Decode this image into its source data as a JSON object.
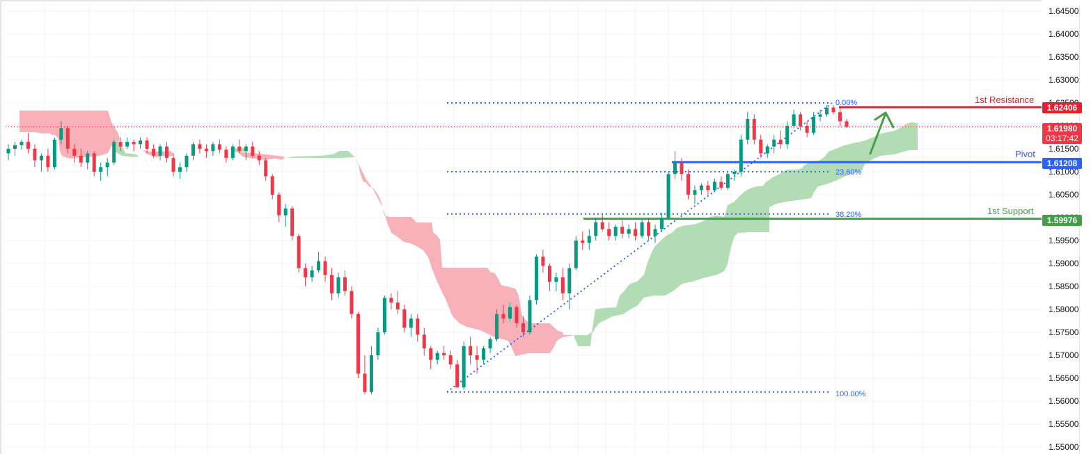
{
  "chart_data": {
    "type": "candlestick",
    "title": "",
    "xlabel": "",
    "ylabel": "",
    "ylim": [
      1.55,
      1.645
    ],
    "grid": true,
    "y_ticks": [
      "1.64500",
      "1.64000",
      "1.63500",
      "1.63000",
      "1.62500",
      "1.62000",
      "1.61500",
      "1.61000",
      "1.60500",
      "1.60000",
      "1.59500",
      "1.59000",
      "1.58500",
      "1.58000",
      "1.57500",
      "1.57000",
      "1.56500",
      "1.56000",
      "1.55500",
      "1.55000"
    ],
    "last_price": "1.61980",
    "countdown": "03:17:42",
    "levels": [
      {
        "name": "1st Resistance",
        "value": 1.62406,
        "label": "1.62406",
        "color": "#e91c30"
      },
      {
        "name": "Pivot",
        "value": 1.61208,
        "label": "1.61208",
        "color": "#2962ff"
      },
      {
        "name": "1st Support",
        "value": 1.59976,
        "label": "1.59976",
        "color": "#43a047"
      }
    ],
    "fibonacci": [
      {
        "label": "0.00%",
        "value": 1.625
      },
      {
        "label": "23.60%",
        "value": 1.61
      },
      {
        "label": "38.20%",
        "value": 1.6008
      },
      {
        "label": "100.00%",
        "value": 1.562
      }
    ],
    "indicators": [
      "Ichimoku Cloud (bullish green / bearish red)",
      "Fibonacci retracement",
      "Projected upward arrow"
    ],
    "candles_approx": [
      [
        1.614,
        1.616,
        1.6125,
        1.615
      ],
      [
        1.615,
        1.6165,
        1.6135,
        1.6158
      ],
      [
        1.6158,
        1.617,
        1.6148,
        1.6165
      ],
      [
        1.6165,
        1.6185,
        1.614,
        1.615
      ],
      [
        1.615,
        1.616,
        1.611,
        1.6125
      ],
      [
        1.6125,
        1.614,
        1.61,
        1.6135
      ],
      [
        1.6135,
        1.615,
        1.61,
        1.611
      ],
      [
        1.611,
        1.6175,
        1.6105,
        1.617
      ],
      [
        1.617,
        1.621,
        1.616,
        1.6195
      ],
      [
        1.6195,
        1.62,
        1.614,
        1.615
      ],
      [
        1.615,
        1.616,
        1.612,
        1.6135
      ],
      [
        1.6135,
        1.615,
        1.611,
        1.612
      ],
      [
        1.612,
        1.6145,
        1.6105,
        1.614
      ],
      [
        1.614,
        1.6145,
        1.609,
        1.61
      ],
      [
        1.61,
        1.612,
        1.608,
        1.611
      ],
      [
        1.611,
        1.613,
        1.609,
        1.612
      ],
      [
        1.612,
        1.617,
        1.6115,
        1.6165
      ],
      [
        1.6165,
        1.6175,
        1.6145,
        1.6155
      ],
      [
        1.6155,
        1.6175,
        1.615,
        1.6165
      ],
      [
        1.6165,
        1.617,
        1.6145,
        1.616
      ],
      [
        1.616,
        1.6175,
        1.615,
        1.6168
      ],
      [
        1.6168,
        1.6175,
        1.614,
        1.615
      ],
      [
        1.615,
        1.616,
        1.613,
        1.6135
      ],
      [
        1.6135,
        1.616,
        1.6125,
        1.6155
      ],
      [
        1.6155,
        1.6165,
        1.612,
        1.613
      ],
      [
        1.613,
        1.614,
        1.609,
        1.61
      ],
      [
        1.61,
        1.612,
        1.6085,
        1.611
      ],
      [
        1.611,
        1.614,
        1.61,
        1.6135
      ],
      [
        1.6135,
        1.6165,
        1.6125,
        1.616
      ],
      [
        1.616,
        1.617,
        1.614,
        1.615
      ],
      [
        1.615,
        1.616,
        1.613,
        1.6145
      ],
      [
        1.6145,
        1.6165,
        1.6135,
        1.616
      ],
      [
        1.616,
        1.617,
        1.614,
        1.6148
      ],
      [
        1.6148,
        1.6155,
        1.612,
        1.613
      ],
      [
        1.613,
        1.616,
        1.6125,
        1.6155
      ],
      [
        1.6155,
        1.617,
        1.614,
        1.6145
      ],
      [
        1.6145,
        1.616,
        1.6125,
        1.6155
      ],
      [
        1.6155,
        1.6165,
        1.613,
        1.6135
      ],
      [
        1.6135,
        1.6145,
        1.6115,
        1.6125
      ],
      [
        1.6125,
        1.613,
        1.608,
        1.609
      ],
      [
        1.609,
        1.6095,
        1.604,
        1.605
      ],
      [
        1.605,
        1.6055,
        1.599,
        1.6005
      ],
      [
        1.6005,
        1.603,
        1.598,
        1.602
      ],
      [
        1.602,
        1.6025,
        1.595,
        1.596
      ],
      [
        1.596,
        1.5965,
        1.588,
        1.589
      ],
      [
        1.589,
        1.59,
        1.585,
        1.587
      ],
      [
        1.587,
        1.5895,
        1.586,
        1.5885
      ],
      [
        1.5885,
        1.5925,
        1.588,
        1.5905
      ],
      [
        1.5905,
        1.5915,
        1.586,
        1.5875
      ],
      [
        1.5875,
        1.589,
        1.582,
        1.5835
      ],
      [
        1.5835,
        1.588,
        1.5825,
        1.587
      ],
      [
        1.587,
        1.5885,
        1.583,
        1.584
      ],
      [
        1.584,
        1.585,
        1.578,
        1.579
      ],
      [
        1.579,
        1.5795,
        1.565,
        1.566
      ],
      [
        1.566,
        1.57,
        1.5615,
        1.562
      ],
      [
        1.562,
        1.572,
        1.5615,
        1.57
      ],
      [
        1.57,
        1.576,
        1.569,
        1.575
      ],
      [
        1.575,
        1.583,
        1.5745,
        1.5825
      ],
      [
        1.5825,
        1.5835,
        1.58,
        1.5815
      ],
      [
        1.5815,
        1.584,
        1.579,
        1.58
      ],
      [
        1.58,
        1.581,
        1.575,
        1.576
      ],
      [
        1.576,
        1.579,
        1.574,
        1.578
      ],
      [
        1.578,
        1.579,
        1.573,
        1.5745
      ],
      [
        1.5745,
        1.576,
        1.57,
        1.5715
      ],
      [
        1.5715,
        1.572,
        1.567,
        1.569
      ],
      [
        1.569,
        1.571,
        1.568,
        1.5705
      ],
      [
        1.5705,
        1.572,
        1.569,
        1.57
      ],
      [
        1.57,
        1.571,
        1.567,
        1.568
      ],
      [
        1.568,
        1.569,
        1.564,
        1.563
      ],
      [
        1.563,
        1.573,
        1.5625,
        1.572
      ],
      [
        1.572,
        1.574,
        1.568,
        1.57
      ],
      [
        1.57,
        1.572,
        1.566,
        1.569
      ],
      [
        1.569,
        1.572,
        1.568,
        1.5715
      ],
      [
        1.5715,
        1.574,
        1.5705,
        1.5735
      ],
      [
        1.5735,
        1.58,
        1.573,
        1.579
      ],
      [
        1.579,
        1.581,
        1.577,
        1.578
      ],
      [
        1.578,
        1.5815,
        1.5775,
        1.5805
      ],
      [
        1.5805,
        1.581,
        1.576,
        1.577
      ],
      [
        1.577,
        1.5785,
        1.574,
        1.575
      ],
      [
        1.575,
        1.583,
        1.5745,
        1.582
      ],
      [
        1.582,
        1.592,
        1.581,
        1.5915
      ],
      [
        1.5915,
        1.593,
        1.588,
        1.5895
      ],
      [
        1.5895,
        1.59,
        1.584,
        1.586
      ],
      [
        1.586,
        1.588,
        1.584,
        1.587
      ],
      [
        1.587,
        1.589,
        1.582,
        1.5835
      ],
      [
        1.5835,
        1.59,
        1.58,
        1.589
      ],
      [
        1.589,
        1.596,
        1.5885,
        1.595
      ],
      [
        1.595,
        1.597,
        1.593,
        1.5945
      ],
      [
        1.5945,
        1.5975,
        1.593,
        1.596
      ],
      [
        1.596,
        1.6,
        1.595,
        1.599
      ],
      [
        1.599,
        1.601,
        1.597,
        1.5975
      ],
      [
        1.5975,
        1.599,
        1.595,
        1.596
      ],
      [
        1.596,
        1.5985,
        1.595,
        1.598
      ],
      [
        1.598,
        1.5995,
        1.5955,
        1.5965
      ],
      [
        1.5965,
        1.5985,
        1.5955,
        1.5975
      ],
      [
        1.5975,
        1.599,
        1.595,
        1.596
      ],
      [
        1.596,
        1.5995,
        1.5955,
        1.599
      ],
      [
        1.599,
        1.6,
        1.595,
        1.596
      ],
      [
        1.596,
        1.5985,
        1.5945,
        1.5975
      ],
      [
        1.5975,
        1.601,
        1.597,
        1.6
      ],
      [
        1.6,
        1.61,
        1.5995,
        1.6095
      ],
      [
        1.6095,
        1.6145,
        1.6085,
        1.612
      ],
      [
        1.612,
        1.613,
        1.608,
        1.6095
      ],
      [
        1.6095,
        1.6105,
        1.604,
        1.605
      ],
      [
        1.605,
        1.607,
        1.603,
        1.606
      ],
      [
        1.606,
        1.6075,
        1.605,
        1.607
      ],
      [
        1.607,
        1.608,
        1.605,
        1.606
      ],
      [
        1.606,
        1.6085,
        1.6055,
        1.6078
      ],
      [
        1.6078,
        1.609,
        1.606,
        1.6065
      ],
      [
        1.6065,
        1.61,
        1.606,
        1.6095
      ],
      [
        1.6095,
        1.6105,
        1.608,
        1.61
      ],
      [
        1.61,
        1.618,
        1.609,
        1.617
      ],
      [
        1.617,
        1.623,
        1.616,
        1.6215
      ],
      [
        1.6215,
        1.6225,
        1.616,
        1.617
      ],
      [
        1.617,
        1.618,
        1.613,
        1.614
      ],
      [
        1.614,
        1.616,
        1.613,
        1.6155
      ],
      [
        1.6155,
        1.618,
        1.614,
        1.617
      ],
      [
        1.617,
        1.619,
        1.615,
        1.616
      ],
      [
        1.616,
        1.621,
        1.615,
        1.62
      ],
      [
        1.62,
        1.6235,
        1.6195,
        1.6225
      ],
      [
        1.6225,
        1.623,
        1.619,
        1.62
      ],
      [
        1.62,
        1.621,
        1.6175,
        1.6185
      ],
      [
        1.6185,
        1.623,
        1.618,
        1.622
      ],
      [
        1.622,
        1.6235,
        1.621,
        1.6225
      ],
      [
        1.6225,
        1.6245,
        1.622,
        1.624
      ],
      [
        1.624,
        1.6245,
        1.6225,
        1.623
      ],
      [
        1.623,
        1.624,
        1.62,
        1.621
      ],
      [
        1.621,
        1.6215,
        1.6195,
        1.6198
      ]
    ]
  }
}
